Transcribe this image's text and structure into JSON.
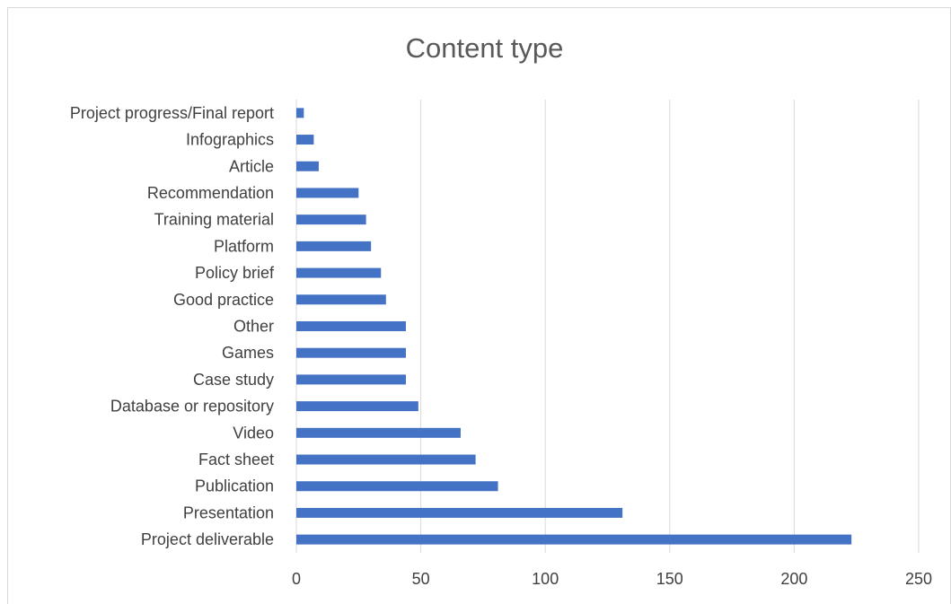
{
  "chart_data": {
    "type": "bar",
    "orientation": "horizontal",
    "title": "Content type",
    "xlabel": "",
    "ylabel": "",
    "categories": [
      "Project progress/Final report",
      "Infographics",
      "Article",
      "Recommendation",
      "Training material",
      "Platform",
      "Policy brief",
      "Good practice",
      "Other",
      "Games",
      "Case study",
      "Database or repository",
      "Video",
      "Fact sheet",
      "Publication",
      "Presentation",
      "Project deliverable"
    ],
    "values": [
      3,
      7,
      9,
      25,
      28,
      30,
      34,
      36,
      44,
      44,
      44,
      49,
      66,
      72,
      81,
      131,
      223
    ],
    "xlim": [
      0,
      250
    ],
    "xticks": [
      0,
      50,
      100,
      150,
      200,
      250
    ],
    "grid": true,
    "legend": "none",
    "bar_color": "#4472c4",
    "grid_color": "#d9d9d9"
  }
}
